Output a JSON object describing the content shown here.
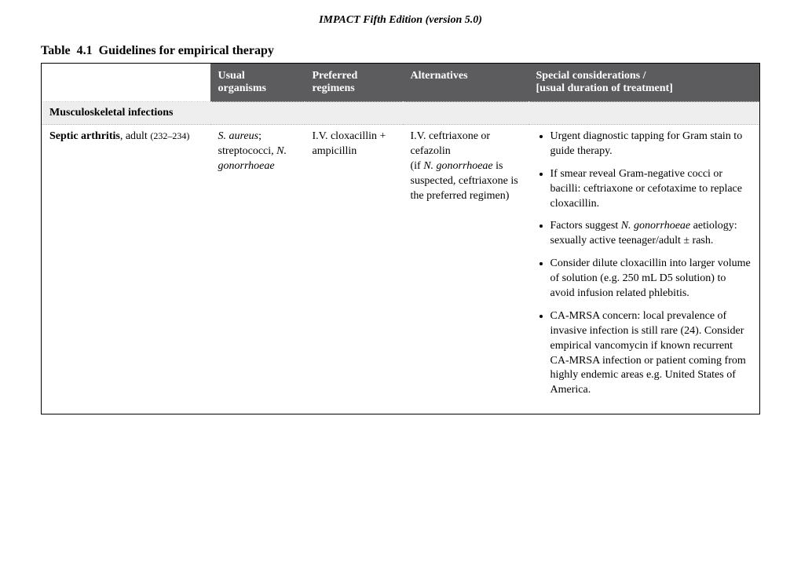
{
  "doc_header": "IMPACT Fifth Edition (version 5.0)",
  "table_title": "Table  4.1  Guidelines for empirical therapy",
  "columns": {
    "c1_l1": "Usual",
    "c1_l2": "organisms",
    "c2_l1": "Preferred",
    "c2_l2": "regimens",
    "c3_l1": "Alternatives",
    "c4_l1": "Special considerations /",
    "c4_l2": "[usual duration of treatment]"
  },
  "section": "Musculoskeletal infections",
  "row": {
    "condition_name": "Septic arthritis",
    "condition_suffix": ", adult",
    "condition_ref": "(232–234)",
    "organisms_p1a": "S. aureus",
    "organisms_p1b": ";",
    "organisms_p2a": "streptococci, ",
    "organisms_p2b": "N. gonorrhoeae",
    "preferred": "I.V. cloxacillin + ampicillin",
    "alt_l1": "I.V. ceftriaxone or cefazolin",
    "alt_l2a": "(if ",
    "alt_l2b": "N. gonorrhoeae",
    "alt_l2c": " is suspected, ceftriaxone is the preferred regimen)",
    "bullets": {
      "b1": "Urgent diagnostic tapping for Gram stain to guide therapy.",
      "b2": "If smear reveal Gram-negative cocci or bacilli: ceftriaxone or cefotaxime to replace cloxacillin.",
      "b3a": "Factors suggest ",
      "b3b": "N. gonorrhoeae",
      "b3c": " aetiology: sexually active teenager/adult ± rash.",
      "b4": "Consider dilute cloxacillin into larger volume of solution (e.g. 250 mL D5 solution) to avoid infusion related phlebitis.",
      "b5": "CA-MRSA concern: local prevalence of invasive infection is still rare (24). Consider empirical vancomycin if known recurrent CA-MRSA infection or patient coming from highly endemic areas e.g. United States of America."
    }
  }
}
